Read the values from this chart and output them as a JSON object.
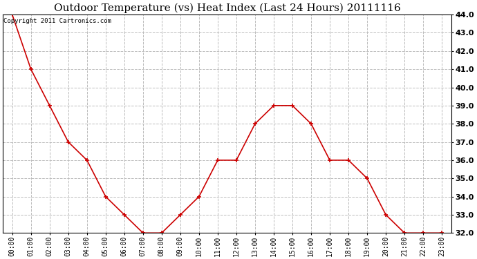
{
  "title": "Outdoor Temperature (vs) Heat Index (Last 24 Hours) 20111116",
  "copyright_text": "Copyright 2011 Cartronics.com",
  "x_labels": [
    "00:00",
    "01:00",
    "02:00",
    "03:00",
    "04:00",
    "05:00",
    "06:00",
    "07:00",
    "08:00",
    "09:00",
    "10:00",
    "11:00",
    "12:00",
    "13:00",
    "14:00",
    "15:00",
    "16:00",
    "17:00",
    "18:00",
    "19:00",
    "20:00",
    "21:00",
    "22:00",
    "23:00"
  ],
  "y_values": [
    44.0,
    41.0,
    39.0,
    37.0,
    36.0,
    34.0,
    33.0,
    32.0,
    32.0,
    33.0,
    34.0,
    36.0,
    36.0,
    38.0,
    39.0,
    39.0,
    38.0,
    36.0,
    36.0,
    35.0,
    33.0,
    32.0,
    32.0,
    32.0
  ],
  "line_color": "#cc0000",
  "marker": "+",
  "marker_size": 5,
  "marker_linewidth": 1.2,
  "line_width": 1.2,
  "ylim": [
    32.0,
    44.0
  ],
  "yticks": [
    32.0,
    33.0,
    34.0,
    35.0,
    36.0,
    37.0,
    38.0,
    39.0,
    40.0,
    41.0,
    42.0,
    43.0,
    44.0
  ],
  "background_color": "#ffffff",
  "plot_bg_color": "#ffffff",
  "grid_color": "#bbbbbb",
  "grid_style": "--",
  "title_fontsize": 11,
  "copyright_fontsize": 6.5,
  "tick_fontsize": 7,
  "ytick_fontsize": 8
}
